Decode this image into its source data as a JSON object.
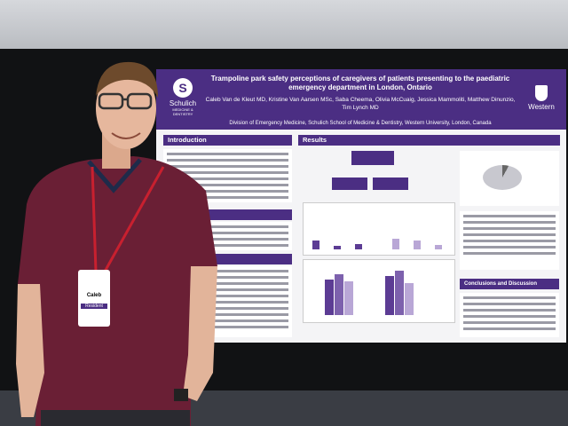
{
  "poster": {
    "title": "Trampoline park safety perceptions of caregivers of patients presenting to the paediatric emergency department in London, Ontario",
    "authors": "Caleb Van de Kleut MD, Kristine Van Aarsen MSc, Saba Cheema, Olivia McCuaig, Jessica Mammoliti, Matthew Dinunzio, Tim Lynch MD",
    "department": "Division of Emergency Medicine, Schulich School of Medicine & Dentistry, Western University, London, Canada",
    "left_logo": "Schulich",
    "left_logo_sub": "MEDICINE & DENTISTRY",
    "right_logo": "Western",
    "sections": {
      "introduction": "Introduction",
      "results": "Results",
      "conclusions": "Conclusions and Discussion"
    }
  },
  "badge": {
    "name": "Caleb",
    "role": "Resident"
  },
  "colors": {
    "poster_purple": "#4b2e83",
    "shirt": "#6a1f35",
    "lanyard": "#c8202f"
  }
}
